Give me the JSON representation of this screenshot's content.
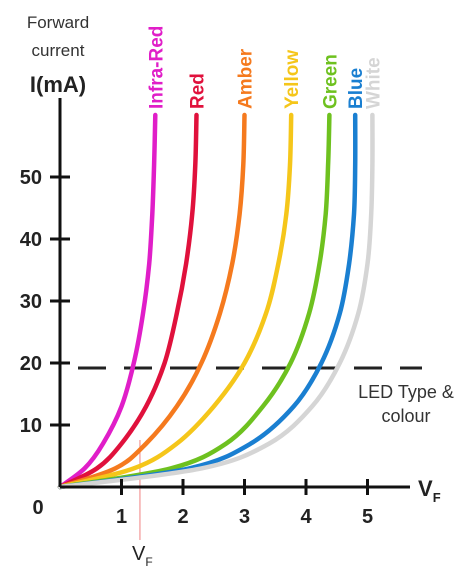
{
  "chart_data": {
    "type": "line",
    "y_title_line1": "Forward",
    "y_title_line2": "current",
    "y_title_line3": "I(mA)",
    "x_axis_label": "V",
    "x_axis_label_sub": "F",
    "vf_marker_label": "V",
    "vf_marker_label_sub": "F",
    "vf_marker_x": 1.3,
    "origin_label": "0",
    "x_ticks": [
      {
        "value": 1,
        "label": "1"
      },
      {
        "value": 2,
        "label": "2"
      },
      {
        "value": 3,
        "label": "3"
      },
      {
        "value": 4,
        "label": "4"
      },
      {
        "value": 5,
        "label": "5"
      }
    ],
    "y_ticks": [
      {
        "value": 10,
        "label": "10"
      },
      {
        "value": 20,
        "label": "20"
      },
      {
        "value": 30,
        "label": "30"
      },
      {
        "value": 40,
        "label": "40"
      },
      {
        "value": 50,
        "label": "50"
      }
    ],
    "xlim": [
      0,
      6
    ],
    "ylim": [
      0,
      61
    ],
    "reference_line_y": 19.2,
    "annotation_line1": "LED Type &",
    "annotation_line2": "colour",
    "grid": false,
    "series": [
      {
        "name": "Infra-Red",
        "color": "#e01ec8",
        "x": [
          0,
          0.4,
          0.7,
          1.0,
          1.2,
          1.35,
          1.45,
          1.5,
          1.53,
          1.55
        ],
        "y": [
          0,
          3,
          7,
          13,
          20,
          28,
          36,
          44,
          52,
          60
        ]
      },
      {
        "name": "Red",
        "color": "#e0113c",
        "x": [
          0,
          0.6,
          1.0,
          1.4,
          1.7,
          1.9,
          2.05,
          2.15,
          2.2,
          2.22
        ],
        "y": [
          0,
          3,
          7,
          13,
          20,
          28,
          36,
          44,
          52,
          60
        ]
      },
      {
        "name": "Amber",
        "color": "#f57a1e",
        "x": [
          0,
          0.9,
          1.4,
          1.9,
          2.3,
          2.6,
          2.8,
          2.92,
          2.98,
          3.0
        ],
        "y": [
          0,
          3,
          7,
          13,
          20,
          28,
          36,
          44,
          52,
          60
        ]
      },
      {
        "name": "Yellow",
        "color": "#f5c61a",
        "x": [
          0,
          1.2,
          1.9,
          2.5,
          3.0,
          3.35,
          3.55,
          3.68,
          3.74,
          3.76
        ],
        "y": [
          0,
          3,
          7,
          13,
          20,
          28,
          36,
          44,
          52,
          60
        ]
      },
      {
        "name": "Green",
        "color": "#6ec11f",
        "x": [
          0,
          1.8,
          2.7,
          3.3,
          3.75,
          4.05,
          4.22,
          4.32,
          4.36,
          4.38
        ],
        "y": [
          0,
          3,
          7,
          13,
          20,
          28,
          36,
          44,
          52,
          60
        ]
      },
      {
        "name": "Blue",
        "color": "#1a7fd1",
        "x": [
          0,
          2.1,
          3.1,
          3.8,
          4.25,
          4.55,
          4.7,
          4.78,
          4.8,
          4.8
        ],
        "y": [
          0,
          3,
          7,
          13,
          20,
          28,
          36,
          44,
          52,
          60
        ]
      },
      {
        "name": "White",
        "color": "#d5d5d5",
        "x": [
          0,
          2.3,
          3.4,
          4.1,
          4.55,
          4.85,
          5.0,
          5.06,
          5.08,
          5.08
        ],
        "y": [
          0,
          3,
          7,
          13,
          20,
          28,
          36,
          44,
          52,
          60
        ]
      }
    ]
  }
}
